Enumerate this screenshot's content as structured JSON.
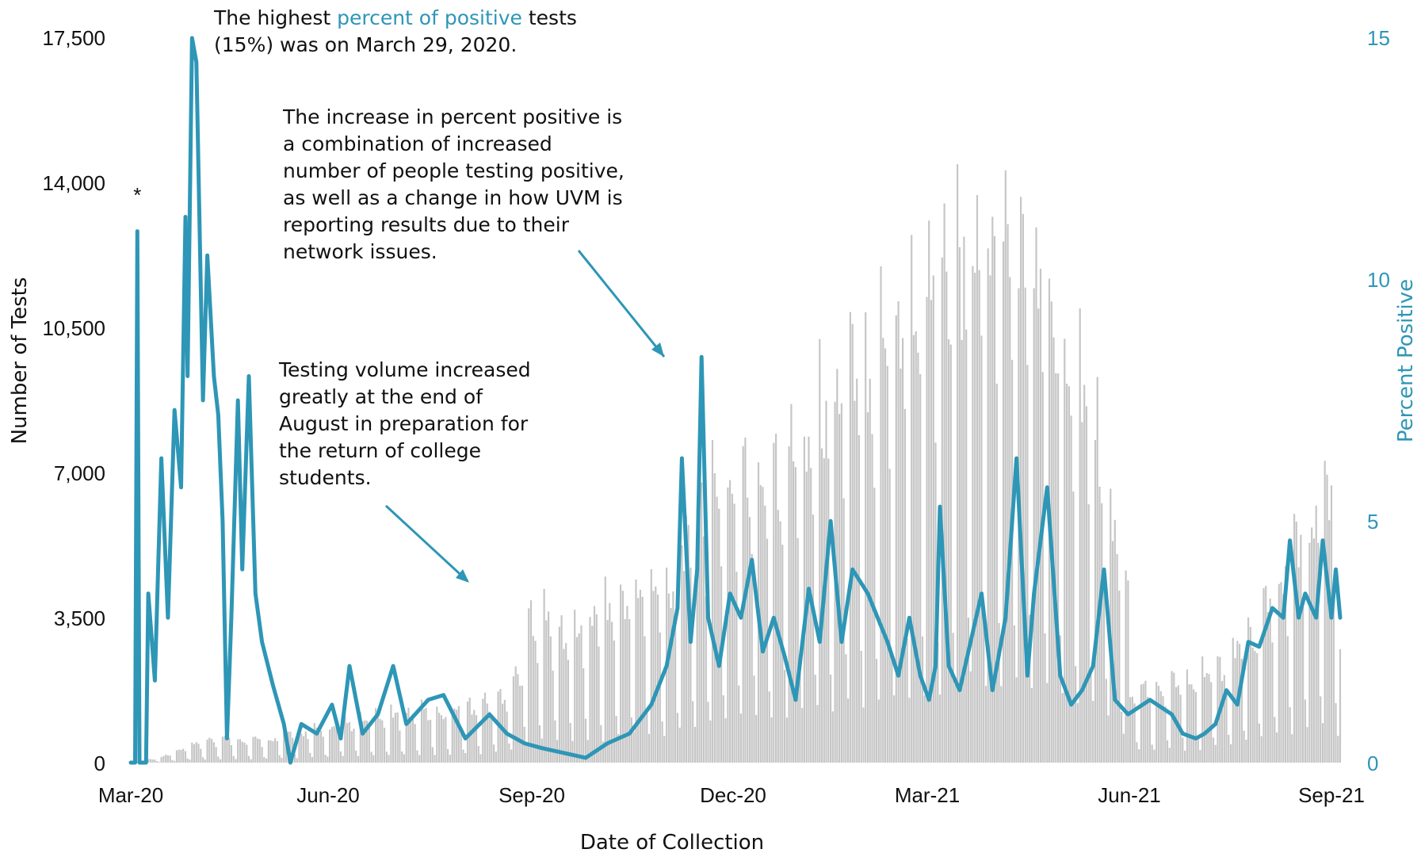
{
  "chart_data": {
    "type": "bar+line",
    "x_range": [
      "2020-03-01",
      "2021-09-06"
    ],
    "xlabel": "Date of Collection",
    "ylabel": "Number of Tests",
    "y2label": "Percent Positive",
    "ylim": [
      0,
      17500
    ],
    "y2lim": [
      0,
      15
    ],
    "y_ticks": [
      "0",
      "3,500",
      "7,000",
      "10,500",
      "14,000",
      "17,500"
    ],
    "y2_ticks": [
      "0",
      "5",
      "10",
      "15"
    ],
    "x_ticks": [
      "Mar-20",
      "Jun-20",
      "Sep-20",
      "Dec-20",
      "Mar-21",
      "Jun-21",
      "Sep-21"
    ],
    "grid": false,
    "colors": {
      "bars": "#c6c6c6",
      "line": "#2e96b6",
      "arrow": "#2e96b6"
    },
    "series": [
      {
        "name": "Number of Tests",
        "kind": "bar",
        "points": [
          [
            "2020-03-01",
            0
          ],
          [
            "2020-03-15",
            150
          ],
          [
            "2020-04-01",
            500
          ],
          [
            "2020-04-15",
            650
          ],
          [
            "2020-05-01",
            600
          ],
          [
            "2020-05-15",
            800
          ],
          [
            "2020-06-01",
            900
          ],
          [
            "2020-06-15",
            1100
          ],
          [
            "2020-07-01",
            1250
          ],
          [
            "2020-07-15",
            1350
          ],
          [
            "2020-08-01",
            1450
          ],
          [
            "2020-08-15",
            1650
          ],
          [
            "2020-08-25",
            2300
          ],
          [
            "2020-09-01",
            4000
          ],
          [
            "2020-09-15",
            3400
          ],
          [
            "2020-10-01",
            3900
          ],
          [
            "2020-10-15",
            4500
          ],
          [
            "2020-11-01",
            4500
          ],
          [
            "2020-11-15",
            6500
          ],
          [
            "2020-12-01",
            7200
          ],
          [
            "2020-12-15",
            7700
          ],
          [
            "2021-01-01",
            8300
          ],
          [
            "2021-01-15",
            9400
          ],
          [
            "2021-02-01",
            10400
          ],
          [
            "2021-02-15",
            11500
          ],
          [
            "2021-03-01",
            12400
          ],
          [
            "2021-03-15",
            13000
          ],
          [
            "2021-04-01",
            13700
          ],
          [
            "2021-04-15",
            13200
          ],
          [
            "2021-05-01",
            11600
          ],
          [
            "2021-05-15",
            9200
          ],
          [
            "2021-05-31",
            4300
          ],
          [
            "2021-06-01",
            1800
          ],
          [
            "2021-06-15",
            2100
          ],
          [
            "2021-07-01",
            2300
          ],
          [
            "2021-07-15",
            2600
          ],
          [
            "2021-08-01",
            3900
          ],
          [
            "2021-08-15",
            5300
          ],
          [
            "2021-09-01",
            7300
          ],
          [
            "2021-09-05",
            2700
          ]
        ]
      },
      {
        "name": "Percent Positive",
        "kind": "line",
        "axis": "right",
        "points": [
          [
            "2020-03-01",
            0
          ],
          [
            "2020-03-03",
            0
          ],
          [
            "2020-03-04",
            11
          ],
          [
            "2020-03-05",
            0
          ],
          [
            "2020-03-08",
            0
          ],
          [
            "2020-03-09",
            3.5
          ],
          [
            "2020-03-12",
            1.7
          ],
          [
            "2020-03-15",
            6.3
          ],
          [
            "2020-03-18",
            3
          ],
          [
            "2020-03-21",
            7.3
          ],
          [
            "2020-03-24",
            5.7
          ],
          [
            "2020-03-26",
            11.3
          ],
          [
            "2020-03-27",
            8
          ],
          [
            "2020-03-29",
            15
          ],
          [
            "2020-03-31",
            14.5
          ],
          [
            "2020-04-03",
            7.5
          ],
          [
            "2020-04-05",
            10.5
          ],
          [
            "2020-04-08",
            8
          ],
          [
            "2020-04-10",
            7.2
          ],
          [
            "2020-04-12",
            5
          ],
          [
            "2020-04-14",
            0.5
          ],
          [
            "2020-04-16",
            3
          ],
          [
            "2020-04-19",
            7.5
          ],
          [
            "2020-04-21",
            4
          ],
          [
            "2020-04-24",
            8
          ],
          [
            "2020-04-27",
            3.5
          ],
          [
            "2020-04-30",
            2.5
          ],
          [
            "2020-05-05",
            1.6
          ],
          [
            "2020-05-10",
            0.8
          ],
          [
            "2020-05-13",
            0
          ],
          [
            "2020-05-18",
            0.8
          ],
          [
            "2020-05-25",
            0.6
          ],
          [
            "2020-06-01",
            1.2
          ],
          [
            "2020-06-05",
            0.5
          ],
          [
            "2020-06-09",
            2
          ],
          [
            "2020-06-15",
            0.6
          ],
          [
            "2020-06-22",
            1
          ],
          [
            "2020-06-29",
            2
          ],
          [
            "2020-07-05",
            0.8
          ],
          [
            "2020-07-15",
            1.3
          ],
          [
            "2020-07-22",
            1.4
          ],
          [
            "2020-08-01",
            0.5
          ],
          [
            "2020-08-12",
            1
          ],
          [
            "2020-08-20",
            0.6
          ],
          [
            "2020-08-28",
            0.4
          ],
          [
            "2020-09-05",
            0.3
          ],
          [
            "2020-09-15",
            0.2
          ],
          [
            "2020-09-25",
            0.1
          ],
          [
            "2020-10-05",
            0.4
          ],
          [
            "2020-10-15",
            0.6
          ],
          [
            "2020-10-25",
            1.2
          ],
          [
            "2020-11-01",
            2
          ],
          [
            "2020-11-06",
            3.2
          ],
          [
            "2020-11-08",
            6.3
          ],
          [
            "2020-11-12",
            2.5
          ],
          [
            "2020-11-15",
            4
          ],
          [
            "2020-11-17",
            8.4
          ],
          [
            "2020-11-20",
            3
          ],
          [
            "2020-11-25",
            2
          ],
          [
            "2020-11-30",
            3.5
          ],
          [
            "2020-12-05",
            3
          ],
          [
            "2020-12-10",
            4.2
          ],
          [
            "2020-12-15",
            2.3
          ],
          [
            "2020-12-20",
            3
          ],
          [
            "2020-12-25",
            2.2
          ],
          [
            "2020-12-30",
            1.3
          ],
          [
            "2021-01-05",
            3.6
          ],
          [
            "2021-01-10",
            2.5
          ],
          [
            "2021-01-15",
            5
          ],
          [
            "2021-01-20",
            2.5
          ],
          [
            "2021-01-25",
            4
          ],
          [
            "2021-02-01",
            3.5
          ],
          [
            "2021-02-10",
            2.5
          ],
          [
            "2021-02-15",
            1.8
          ],
          [
            "2021-02-20",
            3
          ],
          [
            "2021-02-25",
            1.8
          ],
          [
            "2021-03-01",
            1.3
          ],
          [
            "2021-03-04",
            2
          ],
          [
            "2021-03-06",
            5.3
          ],
          [
            "2021-03-10",
            2
          ],
          [
            "2021-03-15",
            1.5
          ],
          [
            "2021-03-20",
            2.5
          ],
          [
            "2021-03-25",
            3.5
          ],
          [
            "2021-03-30",
            1.5
          ],
          [
            "2021-04-05",
            3
          ],
          [
            "2021-04-10",
            6.3
          ],
          [
            "2021-04-15",
            1.8
          ],
          [
            "2021-04-18",
            3.5
          ],
          [
            "2021-04-24",
            5.7
          ],
          [
            "2021-04-30",
            1.8
          ],
          [
            "2021-05-05",
            1.2
          ],
          [
            "2021-05-10",
            1.5
          ],
          [
            "2021-05-15",
            2
          ],
          [
            "2021-05-20",
            4
          ],
          [
            "2021-05-25",
            1.3
          ],
          [
            "2021-05-31",
            1
          ],
          [
            "2021-06-10",
            1.3
          ],
          [
            "2021-06-20",
            1
          ],
          [
            "2021-06-25",
            0.6
          ],
          [
            "2021-07-01",
            0.5
          ],
          [
            "2021-07-05",
            0.6
          ],
          [
            "2021-07-10",
            0.8
          ],
          [
            "2021-07-15",
            1.5
          ],
          [
            "2021-07-20",
            1.2
          ],
          [
            "2021-07-25",
            2.5
          ],
          [
            "2021-07-30",
            2.4
          ],
          [
            "2021-08-05",
            3.2
          ],
          [
            "2021-08-10",
            3
          ],
          [
            "2021-08-13",
            4.6
          ],
          [
            "2021-08-17",
            3
          ],
          [
            "2021-08-20",
            3.5
          ],
          [
            "2021-08-25",
            3
          ],
          [
            "2021-08-28",
            4.6
          ],
          [
            "2021-09-01",
            3
          ],
          [
            "2021-09-03",
            4
          ],
          [
            "2021-09-05",
            3
          ]
        ]
      }
    ],
    "asterisk": {
      "date": "2020-03-04",
      "y2": 11.6,
      "text": "*"
    },
    "annotations": [
      {
        "id": "peak",
        "parts": [
          {
            "text": "The highest ",
            "highlight": false
          },
          {
            "text": "percent of positive",
            "highlight": true
          },
          {
            "text": " tests",
            "highlight": false
          },
          {
            "text": "(15%) was on March 29, 2020.",
            "highlight": false,
            "newline": true
          }
        ]
      },
      {
        "id": "increase",
        "lines": [
          "The increase in percent positive is",
          "a combination of increased",
          "number of people testing positive,",
          "as well as a change in how UVM is",
          "reporting results due to their",
          "network issues."
        ]
      },
      {
        "id": "testing-volume",
        "lines": [
          "Testing volume increased",
          "greatly at the end of",
          "August in preparation for",
          "the return of college",
          "students."
        ]
      }
    ]
  }
}
